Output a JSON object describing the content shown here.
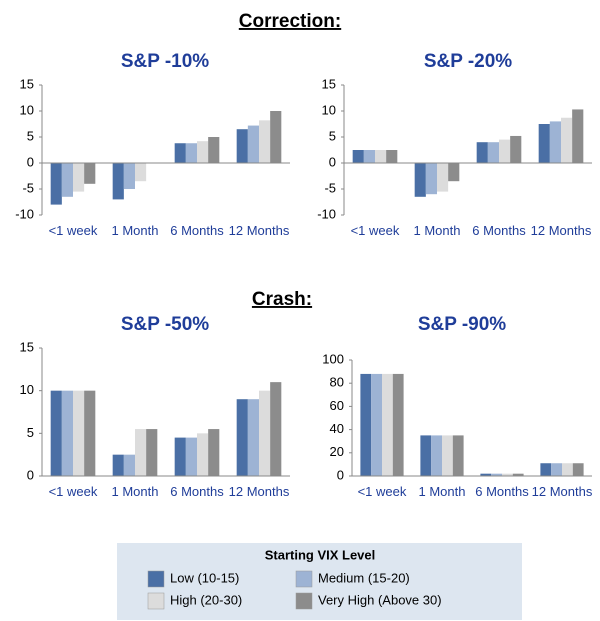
{
  "headings": [
    "Correction:",
    "Crash:"
  ],
  "legend_title": "Starting VIX Level",
  "chart_data": [
    {
      "type": "bar",
      "title": "S&P -10%",
      "categories": [
        "<1 week",
        "1 Month",
        "6 Months",
        "12 Months"
      ],
      "ylim": [
        -10,
        15
      ],
      "yticks": [
        -10,
        -5,
        0,
        5,
        10,
        15
      ],
      "series": [
        {
          "name": "Low (10-15)",
          "color": "#4a6fa5",
          "values": [
            -8,
            -7,
            3.8,
            6.5
          ]
        },
        {
          "name": "Medium (15-20)",
          "color": "#9db3d4",
          "values": [
            -6.5,
            -5,
            3.8,
            7.2
          ]
        },
        {
          "name": "High (20-30)",
          "color": "#dcdcdc",
          "values": [
            -5.5,
            -3.5,
            4.2,
            8.2
          ]
        },
        {
          "name": "Very High (Above 30)",
          "color": "#8c8c8c",
          "values": [
            -4,
            0,
            5,
            10
          ]
        }
      ]
    },
    {
      "type": "bar",
      "title": "S&P -20%",
      "categories": [
        "<1 week",
        "1 Month",
        "6 Months",
        "12 Months"
      ],
      "ylim": [
        -10,
        15
      ],
      "yticks": [
        -10,
        -5,
        0,
        5,
        10,
        15
      ],
      "series": [
        {
          "name": "Low (10-15)",
          "color": "#4a6fa5",
          "values": [
            2.5,
            -6.5,
            4,
            7.5
          ]
        },
        {
          "name": "Medium (15-20)",
          "color": "#9db3d4",
          "values": [
            2.5,
            -6,
            4,
            8
          ]
        },
        {
          "name": "High (20-30)",
          "color": "#dcdcdc",
          "values": [
            2.5,
            -5.5,
            4.5,
            8.7
          ]
        },
        {
          "name": "Very High (Above 30)",
          "color": "#8c8c8c",
          "values": [
            2.5,
            -3.5,
            5.2,
            10.3
          ]
        }
      ]
    },
    {
      "type": "bar",
      "title": "S&P -50%",
      "categories": [
        "<1 week",
        "1 Month",
        "6 Months",
        "12 Months"
      ],
      "ylim": [
        0,
        15
      ],
      "yticks": [
        0,
        5,
        10,
        15
      ],
      "series": [
        {
          "name": "Low (10-15)",
          "color": "#4a6fa5",
          "values": [
            10,
            2.5,
            4.5,
            9
          ]
        },
        {
          "name": "Medium (15-20)",
          "color": "#9db3d4",
          "values": [
            10,
            2.5,
            4.5,
            9
          ]
        },
        {
          "name": "High (20-30)",
          "color": "#dcdcdc",
          "values": [
            10,
            5.5,
            5,
            10
          ]
        },
        {
          "name": "Very High (Above 30)",
          "color": "#8c8c8c",
          "values": [
            10,
            5.5,
            5.5,
            11
          ]
        }
      ]
    },
    {
      "type": "bar",
      "title": "S&P -90%",
      "categories": [
        "<1 week",
        "1 Month",
        "6 Months",
        "12 Months"
      ],
      "ylim": [
        0,
        100
      ],
      "yticks": [
        0,
        20,
        40,
        60,
        80,
        100
      ],
      "series": [
        {
          "name": "Low (10-15)",
          "color": "#4a6fa5",
          "values": [
            88,
            35,
            2,
            11
          ]
        },
        {
          "name": "Medium (15-20)",
          "color": "#9db3d4",
          "values": [
            88,
            35,
            2,
            11
          ]
        },
        {
          "name": "High (20-30)",
          "color": "#dcdcdc",
          "values": [
            88,
            35,
            2,
            11
          ]
        },
        {
          "name": "Very High (Above 30)",
          "color": "#8c8c8c",
          "values": [
            88,
            35,
            2,
            11
          ]
        }
      ]
    }
  ]
}
